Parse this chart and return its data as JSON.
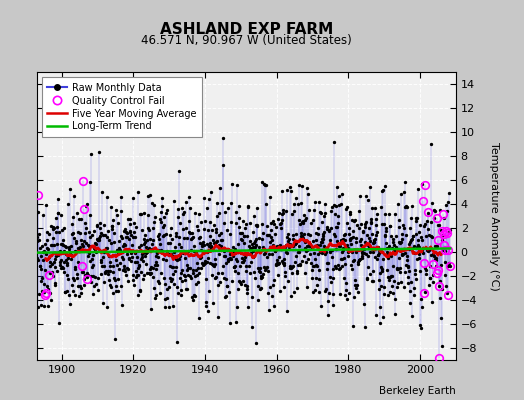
{
  "title": "ASHLAND EXP FARM",
  "subtitle": "46.571 N, 90.967 W (United States)",
  "ylabel": "Temperature Anomaly (°C)",
  "credit": "Berkeley Earth",
  "xlim": [
    1893,
    2010
  ],
  "ylim": [
    -9,
    15
  ],
  "yticks": [
    -8,
    -6,
    -4,
    -2,
    0,
    2,
    4,
    6,
    8,
    10,
    12,
    14
  ],
  "xticks": [
    1900,
    1920,
    1940,
    1960,
    1980,
    2000
  ],
  "bg_color": "#c8c8c8",
  "plot_bg_color": "#f0f0f0",
  "raw_color": "#4040dd",
  "raw_dot_color": "#000000",
  "qc_color": "#ff00ff",
  "moving_avg_color": "#dd0000",
  "trend_color": "#00bb00",
  "seed": 42,
  "start_year": 1893,
  "end_year": 2008,
  "noise_std": 2.2,
  "trend_slope": 0.003
}
